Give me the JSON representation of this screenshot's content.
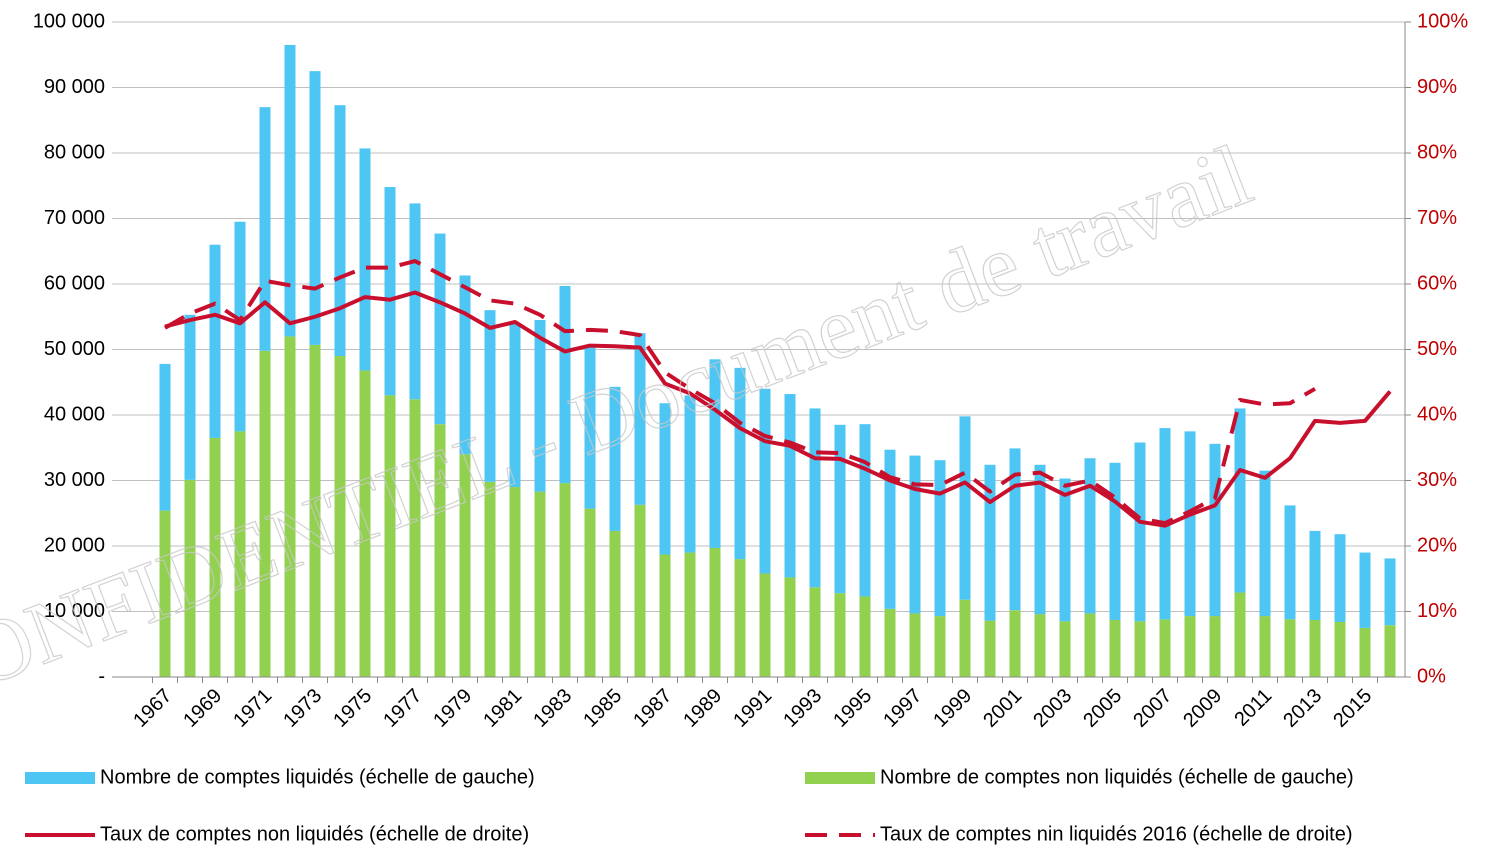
{
  "chart_data": {
    "type": "bar",
    "stacked": true,
    "watermark": "CONFIDENTIEL - Document de travail",
    "categories": [
      "1967",
      null,
      "1969",
      null,
      "1971",
      null,
      "1973",
      null,
      "1975",
      null,
      "1977",
      null,
      "1979",
      null,
      "1981",
      null,
      "1983",
      null,
      "1985",
      null,
      "1987",
      null,
      "1989",
      null,
      "1991",
      null,
      "1993",
      null,
      "1995",
      null,
      "1997",
      null,
      "1999",
      null,
      "2001",
      null,
      "2003",
      null,
      "2005",
      null,
      "2007",
      null,
      "2009",
      null,
      "2011",
      null,
      "2013",
      null,
      "2015",
      null
    ],
    "series": [
      {
        "name": "Nombre de comptes non liquidés (échelle de gauche)",
        "type": "bar",
        "color": "#92d050",
        "values": [
          25400,
          30100,
          36500,
          37500,
          49800,
          52000,
          50700,
          49000,
          46800,
          43000,
          42400,
          38600,
          34000,
          29800,
          29000,
          28300,
          29600,
          25700,
          22300,
          26300,
          18700,
          19000,
          19700,
          18000,
          15800,
          15200,
          13700,
          12800,
          12300,
          10400,
          9700,
          9300,
          11800,
          8600,
          10200,
          9600,
          8500,
          9700,
          8700,
          8500,
          8800,
          9300,
          9300,
          12900,
          9300,
          8800,
          8700,
          8400,
          7500,
          7900
        ]
      },
      {
        "name": "Nombre de comptes liquidés (échelle de gauche)",
        "type": "bar",
        "color": "#4dc6f4",
        "values": [
          22400,
          25200,
          29500,
          32000,
          37200,
          44500,
          41800,
          38300,
          33900,
          31800,
          29900,
          29100,
          27300,
          26200,
          25000,
          26200,
          30100,
          24800,
          22000,
          26200,
          23100,
          24000,
          28800,
          29200,
          28200,
          28000,
          27300,
          25700,
          26300,
          24300,
          24100,
          23800,
          28000,
          23800,
          24700,
          22800,
          21800,
          23700,
          24000,
          27300,
          29200,
          28200,
          26300,
          28100,
          22200,
          17400,
          13600,
          13400,
          11500,
          10200
        ]
      },
      {
        "name": "Taux de comptes non liquidés (échelle de droite)",
        "type": "line",
        "axis": "y2",
        "line_style": "solid",
        "color": "#c8102e",
        "values": [
          53.5,
          54.5,
          55.3,
          54,
          57.2,
          54,
          55,
          56.3,
          58,
          57.6,
          58.7,
          57.2,
          55.5,
          53.3,
          54.2,
          51.8,
          49.7,
          50.6,
          50.5,
          50.3,
          44.8,
          43.3,
          40.8,
          38,
          36,
          35.3,
          33.4,
          33.3,
          31.8,
          30,
          28.7,
          28,
          29.7,
          26.7,
          29.2,
          29.7,
          27.8,
          29.2,
          26.8,
          23.7,
          23.1,
          24.8,
          26.2,
          31.6,
          30.4,
          33.4,
          39.1,
          38.8,
          39.1,
          43.6
        ]
      },
      {
        "name": "Taux de comptes nin liquidés 2016 (échelle de droite)",
        "type": "line",
        "axis": "y2",
        "line_style": "dashed",
        "color": "#c8102e",
        "values": [
          53.3,
          55.5,
          57,
          54.5,
          60.5,
          59.8,
          59.3,
          61,
          62.5,
          62.5,
          63.5,
          61.5,
          59.5,
          57.5,
          57,
          55.3,
          52.8,
          53,
          52.8,
          52.2,
          46.5,
          44,
          41.8,
          38.8,
          36.8,
          35.8,
          34.3,
          34.2,
          32.8,
          30.5,
          29.4,
          29.3,
          31.2,
          28.3,
          30.9,
          31.2,
          29.2,
          30,
          27.4,
          24.2,
          23.5,
          25.3,
          27.3,
          42.3,
          41.6,
          41.8,
          44,
          null,
          null,
          null
        ]
      }
    ],
    "ylim": [
      0,
      100000
    ],
    "yticks": [
      {
        "value": 0,
        "label": "-"
      },
      {
        "value": 10000,
        "label": "10 000"
      },
      {
        "value": 20000,
        "label": "20 000"
      },
      {
        "value": 30000,
        "label": "30 000"
      },
      {
        "value": 40000,
        "label": "40 000"
      },
      {
        "value": 50000,
        "label": "50 000"
      },
      {
        "value": 60000,
        "label": "60 000"
      },
      {
        "value": 70000,
        "label": "70 000"
      },
      {
        "value": 80000,
        "label": "80 000"
      },
      {
        "value": 90000,
        "label": "90 000"
      },
      {
        "value": 100000,
        "label": "100 000"
      }
    ],
    "y2lim": [
      0,
      100
    ],
    "y2ticks": [
      {
        "value": 0,
        "label": "0%"
      },
      {
        "value": 10,
        "label": "10%"
      },
      {
        "value": 20,
        "label": "20%"
      },
      {
        "value": 30,
        "label": "30%"
      },
      {
        "value": 40,
        "label": "40%"
      },
      {
        "value": 50,
        "label": "50%"
      },
      {
        "value": 60,
        "label": "60%"
      },
      {
        "value": 70,
        "label": "70%"
      },
      {
        "value": 80,
        "label": "80%"
      },
      {
        "value": 90,
        "label": "90%"
      },
      {
        "value": 100,
        "label": "100%"
      }
    ],
    "y2_color": "#c00000",
    "grid": true,
    "legend": "bottom"
  }
}
